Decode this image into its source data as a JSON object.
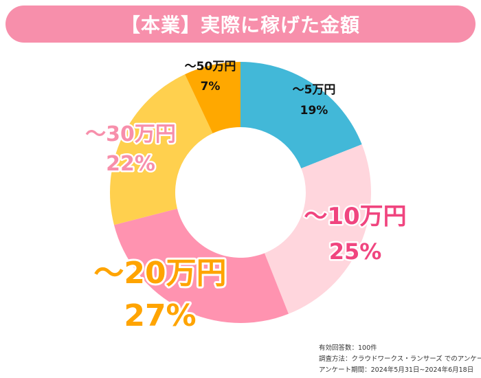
{
  "title": "【本業】実際に稼げた金額",
  "chart_data": {
    "type": "pie",
    "donut": true,
    "title": "【本業】実際に稼げた金額",
    "unit": "%",
    "slices": [
      {
        "label": "～5万円",
        "value": 19,
        "value_label": "19%",
        "color": "#42b8d8",
        "label_color": "#111111"
      },
      {
        "label": "～10万円",
        "value": 25,
        "value_label": "25%",
        "color": "#ffd6dd",
        "label_color": "#f0457f"
      },
      {
        "label": "～20万円",
        "value": 27,
        "value_label": "27%",
        "color": "#ff93b0",
        "label_color": "#ffa400"
      },
      {
        "label": "～30万円",
        "value": 22,
        "value_label": "22%",
        "color": "#ffd04e",
        "label_color": "#f78fab"
      },
      {
        "label": "～50万円",
        "value": 7,
        "value_label": "7%",
        "color": "#ffa800",
        "label_color": "#111111"
      }
    ]
  },
  "footnotes": [
    "有効回答数：100件",
    "調査方法：クラウドワークス・ランサーズ でのアンケート",
    "アンケート期間：2024年5月31日~2024年6月18日"
  ]
}
